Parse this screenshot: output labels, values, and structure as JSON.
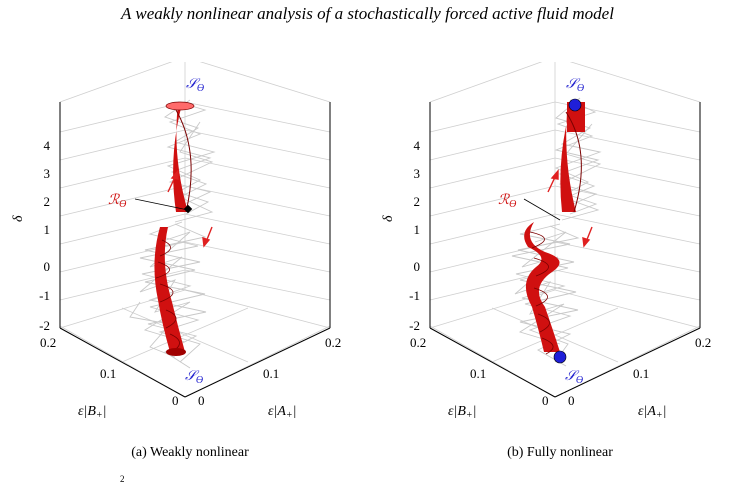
{
  "header": {
    "title": "A weakly nonlinear analysis of a stochastically forced active fluid model"
  },
  "panels": [
    {
      "id": "a",
      "caption": "(a) Weakly nonlinear",
      "z_ticks": [
        "4",
        "3",
        "2",
        "1",
        "0",
        "-1",
        "-2"
      ],
      "b_ticks": [
        "0.2",
        "0.1",
        "0"
      ],
      "a_ticks": [
        "0",
        "0.1",
        "0.2"
      ],
      "z_label": "δ",
      "b_label_prefix": "ε|B",
      "b_label_sub": "+",
      "a_label_prefix": "ε|A",
      "a_label_sub": "+",
      "label_S": "𝒮",
      "label_R": "ℛ",
      "label_theta": "ϴ"
    },
    {
      "id": "b",
      "caption": "(b) Fully nonlinear",
      "z_ticks": [
        "4",
        "3",
        "2",
        "1",
        "0",
        "-1",
        "-2"
      ],
      "b_ticks": [
        "0.2",
        "0.1",
        "0"
      ],
      "a_ticks": [
        "0",
        "0.1",
        "0.2"
      ],
      "z_label": "δ",
      "b_label_prefix": "ε|B",
      "b_label_sub": "+",
      "a_label_prefix": "ε|A",
      "a_label_sub": "+",
      "label_S": "𝒮",
      "label_R": "ℛ",
      "label_theta": "ϴ"
    }
  ],
  "footer": {
    "stray": "2"
  },
  "colors": {
    "tube": "#d01010",
    "tube_dark": "#7a0000",
    "noise": "#c8c8c8",
    "grid": "#dcdcdc",
    "S_label": "#2323d0",
    "R_label": "#d01010",
    "arrow": "#e02020"
  }
}
